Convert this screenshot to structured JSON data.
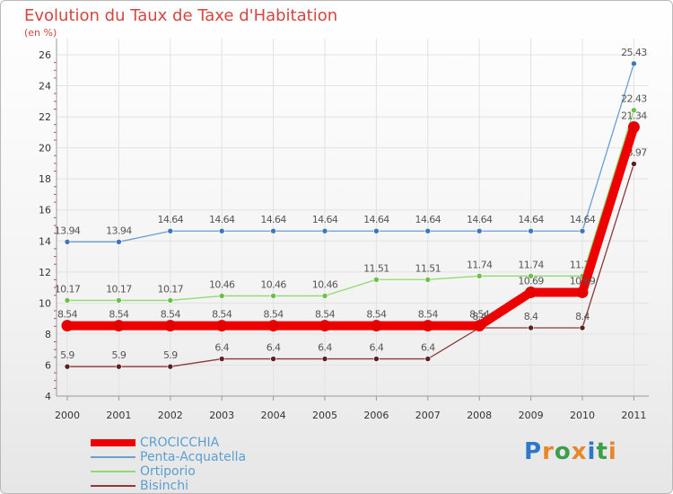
{
  "header": {
    "title": "Evolution du Taux de Taxe d'Habitation",
    "unit_label": "(en %)"
  },
  "brand": {
    "logo_text": "Proxiti",
    "colors": [
      "#2f78c8",
      "#e8872a",
      "#3e9e4b",
      "#e8872a",
      "#2f78c8",
      "#3e9e4b",
      "#e8872a"
    ]
  },
  "chart_data": {
    "type": "line",
    "title": "Evolution du Taux de Taxe d'Habitation",
    "ylabel": "(en %)",
    "xlabel": "",
    "x": [
      "2000",
      "2001",
      "2002",
      "2003",
      "2004",
      "2005",
      "2006",
      "2007",
      "2008",
      "2009",
      "2010",
      "2011"
    ],
    "ylim": [
      4,
      26
    ],
    "yticks": [
      4,
      6,
      8,
      10,
      12,
      14,
      16,
      18,
      20,
      22,
      24,
      26
    ],
    "grid": true,
    "legend_position": "bottom-left",
    "series": [
      {
        "name": "Penta-Acquatella",
        "color": "#6a9fd4",
        "marker": "#3a78b8",
        "values": [
          13.94,
          13.94,
          14.64,
          14.64,
          14.64,
          14.64,
          14.64,
          14.64,
          14.64,
          14.64,
          14.64,
          25.43
        ],
        "labels": [
          "13.94",
          "13.94",
          "14.64",
          "14.64",
          "14.64",
          "14.64",
          "14.64",
          "14.64",
          "14.64",
          "14.64",
          "14.64",
          "25.43"
        ]
      },
      {
        "name": "Ortiporio",
        "color": "#8fdc6e",
        "marker": "#6cbf4a",
        "values": [
          10.17,
          10.17,
          10.17,
          10.46,
          10.46,
          10.46,
          11.51,
          11.51,
          11.74,
          11.74,
          11.74,
          22.43
        ],
        "labels": [
          "10.17",
          "10.17",
          "10.17",
          "10.46",
          "10.46",
          "10.46",
          "11.51",
          "11.51",
          "11.74",
          "11.74",
          "11.74",
          "22.43"
        ]
      },
      {
        "name": "Bisinchi",
        "color": "#8a3a3a",
        "marker": "#5e1f1f",
        "values": [
          5.9,
          5.9,
          5.9,
          6.4,
          6.4,
          6.4,
          6.4,
          6.4,
          8.4,
          8.4,
          8.4,
          18.97
        ],
        "labels": [
          "5.9",
          "5.9",
          "5.9",
          "6.4",
          "6.4",
          "6.4",
          "6.4",
          "6.4",
          "8.4",
          "8.4",
          "8.4",
          "18.97"
        ]
      },
      {
        "name": "CROCICCHIA",
        "color": "#ee0000",
        "marker": "#e60000",
        "bold": true,
        "values": [
          8.54,
          8.54,
          8.54,
          8.54,
          8.54,
          8.54,
          8.54,
          8.54,
          8.54,
          10.69,
          10.69,
          21.34
        ],
        "labels": [
          "8.54",
          "8.54",
          "8.54",
          "8.54",
          "8.54",
          "8.54",
          "8.54",
          "8.54",
          "8.54",
          "10.69",
          "10.69",
          "21.34"
        ]
      }
    ],
    "legend_order": [
      "CROCICCHIA",
      "Penta-Acquatella",
      "Ortiporio",
      "Bisinchi"
    ]
  }
}
